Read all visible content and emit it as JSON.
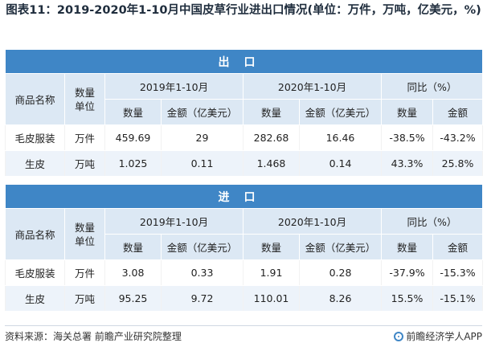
{
  "title": "图表11：2019-2020年1-10月中国皮草行业进出口情况(单位：万件，万吨，亿美元，%)",
  "export": {
    "band_label": "出口",
    "headers": {
      "product": "商品名称",
      "unit": "数量单位",
      "period1": "2019年1-10月",
      "period2": "2020年1-10月",
      "yoy": "同比（%）",
      "qty": "数量",
      "amount": "金额（亿美元）",
      "yoy_qty": "数量",
      "yoy_amount": "金额"
    },
    "rows": [
      {
        "product": "毛皮服装",
        "unit": "万件",
        "qty_2019": "459.69",
        "amt_2019": "29",
        "qty_2020": "282.68",
        "amt_2020": "16.46",
        "yoy_qty": "-38.5%",
        "yoy_amt": "-43.2%"
      },
      {
        "product": "生皮",
        "unit": "万吨",
        "qty_2019": "1.025",
        "amt_2019": "0.11",
        "qty_2020": "1.468",
        "amt_2020": "0.14",
        "yoy_qty": "43.3%",
        "yoy_amt": "25.8%"
      }
    ]
  },
  "import": {
    "band_label": "进口",
    "headers": {
      "product": "商品名称",
      "unit": "数量单位",
      "period1": "2019年1-10月",
      "period2": "2020年1-10月",
      "yoy": "同比（%）",
      "qty": "数量",
      "amount": "金额（亿美元）",
      "yoy_qty": "数量",
      "yoy_amount": "金额"
    },
    "rows": [
      {
        "product": "毛皮服装",
        "unit": "万件",
        "qty_2019": "3.08",
        "amt_2019": "0.33",
        "qty_2020": "1.91",
        "amt_2020": "0.28",
        "yoy_qty": "-37.9%",
        "yoy_amt": "-15.3%"
      },
      {
        "product": "生皮",
        "unit": "万吨",
        "qty_2019": "95.25",
        "amt_2019": "9.72",
        "qty_2020": "110.01",
        "amt_2020": "8.26",
        "yoy_qty": "15.5%",
        "yoy_amt": "-15.1%"
      }
    ]
  },
  "footer": {
    "source": "资料来源：海关总署 前瞻产业研究院整理",
    "brand": "前瞻经济学人APP"
  },
  "colors": {
    "band": "#3f86c6",
    "header_bg": "#dce8f4",
    "alt_row": "#edf3fa"
  }
}
